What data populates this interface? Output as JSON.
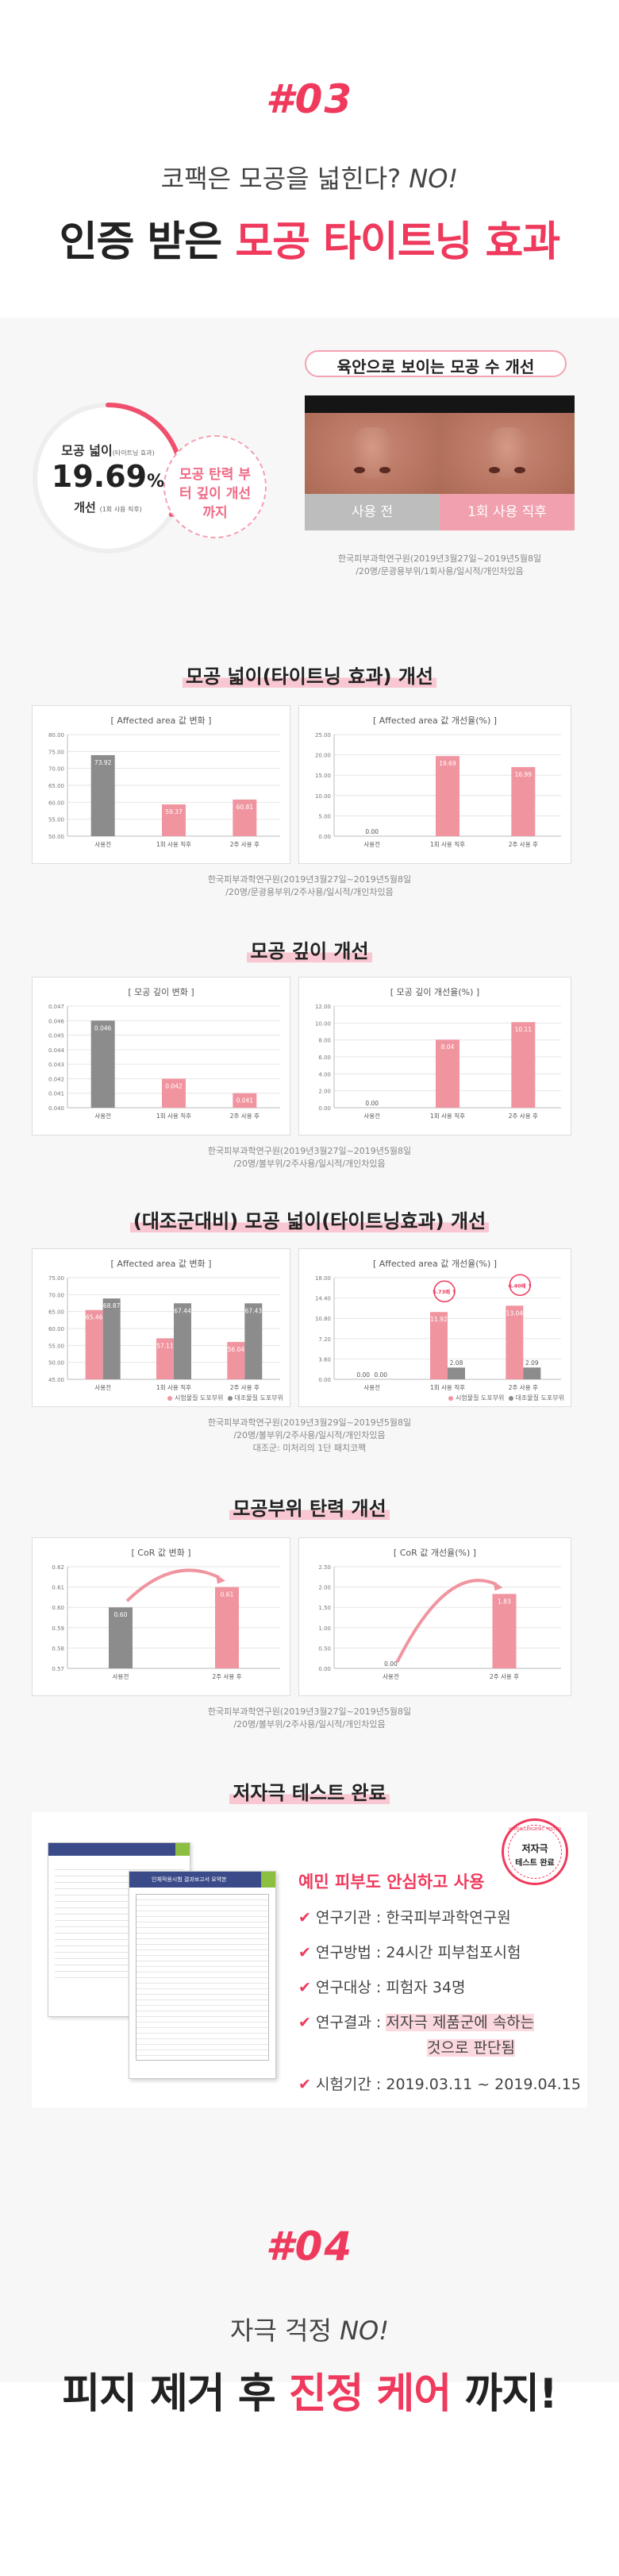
{
  "sec3": {
    "num": "#03",
    "question": "코팩은 모공을 넓힌다?",
    "no": "NO!",
    "headline_a": "인증 받은 ",
    "headline_b": "모공 타이트닝 효과"
  },
  "top": {
    "title": "육안으로 보이는 모공 수 개선",
    "circle_label": "모공 넓이",
    "circle_label_small": "(타이트닝 효과)",
    "circle_value": "19.69",
    "circle_unit": "%",
    "circle_after": "개선",
    "circle_after_small": "(1회 사용 직후)",
    "bubble": "모공 탄력 부터 깊이 개선까지",
    "photo_before": "사용 전",
    "photo_after": "1회 사용 직후",
    "source": [
      "한국피부과학연구원(2019년3월27일~2019년5월8일",
      "/20명/문광용부위/1회사용/일시적/개인차있음"
    ]
  },
  "colors": {
    "pink": "#f0959f",
    "grey": "#8c8c8c",
    "accent": "#ef3a5d"
  },
  "sections": [
    {
      "title": "모공 넓이(타이트닝 효과) 개선",
      "source": [
        "한국피부과학연구원(2019년3월27일~2019년5월8일",
        "/20명/문광용부위/2주사용/일시적/개인차있음"
      ],
      "charts": [
        {
          "type": "bar",
          "title": "[ Affected area 값 변화 ]",
          "ticks": [
            "80.00",
            "75.00",
            "70.00",
            "65.00",
            "60.00",
            "55.00",
            "50.00"
          ],
          "ylim": [
            50,
            80
          ],
          "categories": [
            "사용전",
            "1회 사용 직후",
            "2주 사용 후"
          ],
          "values": [
            73.92,
            59.37,
            60.81
          ],
          "labels": [
            "73.92",
            "59.37",
            "60.81"
          ],
          "colors": [
            "grey",
            "pink",
            "pink"
          ]
        },
        {
          "type": "bar",
          "title": "[ Affected area 값 개선율(%) ]",
          "ticks": [
            "25.00",
            "20.00",
            "15.00",
            "10.00",
            "5.00",
            "0.00"
          ],
          "ylim": [
            0,
            25
          ],
          "categories": [
            "사용전",
            "1회 사용 직후",
            "2주 사용 후"
          ],
          "values": [
            0,
            19.69,
            16.99
          ],
          "labels": [
            "0.00",
            "19.69",
            "16.99"
          ],
          "colors": [
            "grey",
            "pink",
            "pink"
          ]
        }
      ]
    },
    {
      "title": "모공 깊이 개선",
      "source": [
        "한국피부과학연구원(2019년3월27일~2019년5월8일",
        "/20명/볼부위/2주사용/일시적/개인차있음"
      ],
      "charts": [
        {
          "type": "bar",
          "title": "[ 모공 깊이 변화 ]",
          "ticks": [
            "0.047",
            "0.046",
            "0.045",
            "0.044",
            "0.043",
            "0.042",
            "0.041",
            "0.040"
          ],
          "ylim": [
            0.04,
            0.047
          ],
          "categories": [
            "사용전",
            "1회 사용 직후",
            "2주 사용 후"
          ],
          "values": [
            0.046,
            0.042,
            0.041
          ],
          "labels": [
            "0.046",
            "0.042",
            "0.041"
          ],
          "colors": [
            "grey",
            "pink",
            "pink"
          ]
        },
        {
          "type": "bar",
          "title": "[ 모공 깊이 개선율(%) ]",
          "ticks": [
            "12.00",
            "10.00",
            "8.00",
            "6.00",
            "4.00",
            "2.00",
            "0.00"
          ],
          "ylim": [
            0,
            12
          ],
          "categories": [
            "사용전",
            "1회 사용 직후",
            "2주 사용 후"
          ],
          "values": [
            0,
            8.04,
            10.11
          ],
          "labels": [
            "0.00",
            "8.04",
            "10.11"
          ],
          "colors": [
            "grey",
            "pink",
            "pink"
          ]
        }
      ]
    },
    {
      "title": "(대조군대비) 모공 넓이(타이트닝효과) 개선",
      "source": [
        "한국피부과학연구원(2019년3월29일~2019년5월8일",
        "/20명/볼부위/2주사용/일시적/개인차있음",
        "대조군: 미처리의 1단 패치코팩"
      ],
      "legend": [
        "시험물질 도포부위",
        "대조물질 도포부위"
      ],
      "charts": [
        {
          "type": "bar",
          "title": "[ Affected area 값 변화 ]",
          "ticks": [
            "75.00",
            "70.00",
            "65.00",
            "60.00",
            "55.00",
            "50.00",
            "45.00"
          ],
          "ylim": [
            45,
            75
          ],
          "categories": [
            "사용전",
            "1회 사용 직후",
            "2주 사용 후"
          ],
          "series": [
            {
              "name": "시험물질 도포부위",
              "values": [
                65.46,
                57.11,
                56.04
              ],
              "labels": [
                "65.46",
                "57.11",
                "56.04"
              ]
            },
            {
              "name": "대조물질 도포부위",
              "values": [
                68.87,
                67.44,
                67.43
              ],
              "labels": [
                "68.87",
                "67.44",
                "67.43"
              ]
            }
          ]
        },
        {
          "type": "bar",
          "title": "[ Affected area 값 개선율(%) ]",
          "ticks": [
            "18.00",
            "14.40",
            "10.80",
            "7.20",
            "3.60",
            "0.00"
          ],
          "ylim": [
            0,
            18
          ],
          "categories": [
            "사용전",
            "1회 사용 직후",
            "2주 사용 후"
          ],
          "series": [
            {
              "name": "시험물질 도포부위",
              "values": [
                0,
                11.92,
                13.04
              ],
              "labels": [
                "0.00",
                "11.92",
                "13.04"
              ]
            },
            {
              "name": "대조물질 도포부위",
              "values": [
                0,
                2.08,
                2.09
              ],
              "labels": [
                "0.00",
                "2.08",
                "2.09"
              ]
            }
          ],
          "callouts": [
            "5.73배 ↑",
            "6.40배 ↑"
          ]
        }
      ]
    },
    {
      "title": "모공부위 탄력 개선",
      "source": [
        "한국피부과학연구원(2019년3월27일~2019년5월8일",
        "/20명/볼부위/2주사용/일시적/개인차있음"
      ],
      "charts": [
        {
          "type": "bar",
          "title": "[ CoR 값 변화 ]",
          "ticks": [
            "0.62",
            "0.61",
            "0.60",
            "0.59",
            "0.58",
            "0.57"
          ],
          "ylim": [
            0.57,
            0.62
          ],
          "categories": [
            "사용전",
            "2주 사용 후"
          ],
          "values": [
            0.6,
            0.61
          ],
          "labels": [
            "0.60",
            "0.61"
          ],
          "colors": [
            "grey",
            "pink"
          ]
        },
        {
          "type": "bar",
          "title": "[ CoR 값 개선율(%) ]",
          "ticks": [
            "2.50",
            "2.00",
            "1.50",
            "1.00",
            "0.50",
            "0.00"
          ],
          "ylim": [
            0,
            2.5
          ],
          "categories": [
            "사용전",
            "2주 사용 후"
          ],
          "values": [
            0,
            1.83
          ],
          "labels": [
            "0.00",
            "1.83"
          ],
          "colors": [
            "grey",
            "pink"
          ]
        }
      ]
    }
  ],
  "test": {
    "title": "저자극 테스트 완료",
    "stamp_top": "HYPOALLERGENIC TESTED",
    "stamp_a": "저자극",
    "stamp_b": "테스트 완료",
    "doc_title": "인체적용시험 결과보고서 요약본",
    "lead": "예민 피부도 안심하고 사용",
    "items": [
      {
        "k": "연구기관",
        "v": "한국피부과학연구원"
      },
      {
        "k": "연구방법",
        "v": "24시간 피부첩포시험"
      },
      {
        "k": "연구대상",
        "v": "피험자 34명"
      },
      {
        "k": "연구결과",
        "v": "저자극 제품군에 속하는",
        "v2": "것으로 판단됨"
      },
      {
        "k": "시험기간",
        "v": "2019.03.11 ~ 2019.04.15"
      }
    ]
  },
  "sec4": {
    "num": "#04",
    "question": "자극 걱정",
    "no": "NO!",
    "headline_a": "피지 제거 후 ",
    "headline_b": "진정 케어",
    "headline_c": " 까지!"
  }
}
